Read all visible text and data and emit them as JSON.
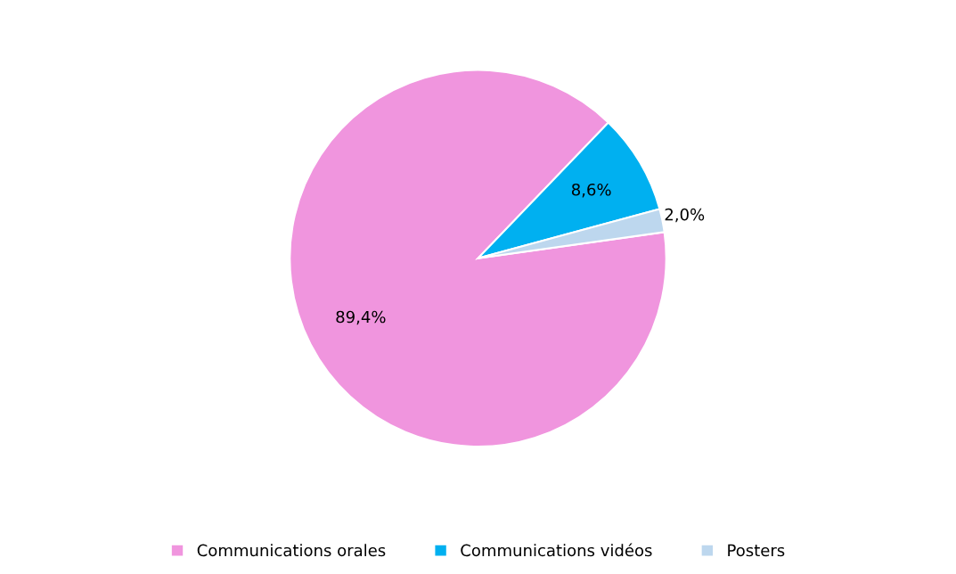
{
  "chart_data": {
    "type": "pie",
    "categories": [
      "Communications orales",
      "Communications vidéos",
      "Posters"
    ],
    "values": [
      89.4,
      8.6,
      2.0
    ],
    "colors": [
      "#f095de",
      "#00b0f0",
      "#bdd7ee"
    ],
    "value_labels": [
      "89,4%",
      "8,6%",
      "2,0%"
    ],
    "legend": "bottom"
  }
}
